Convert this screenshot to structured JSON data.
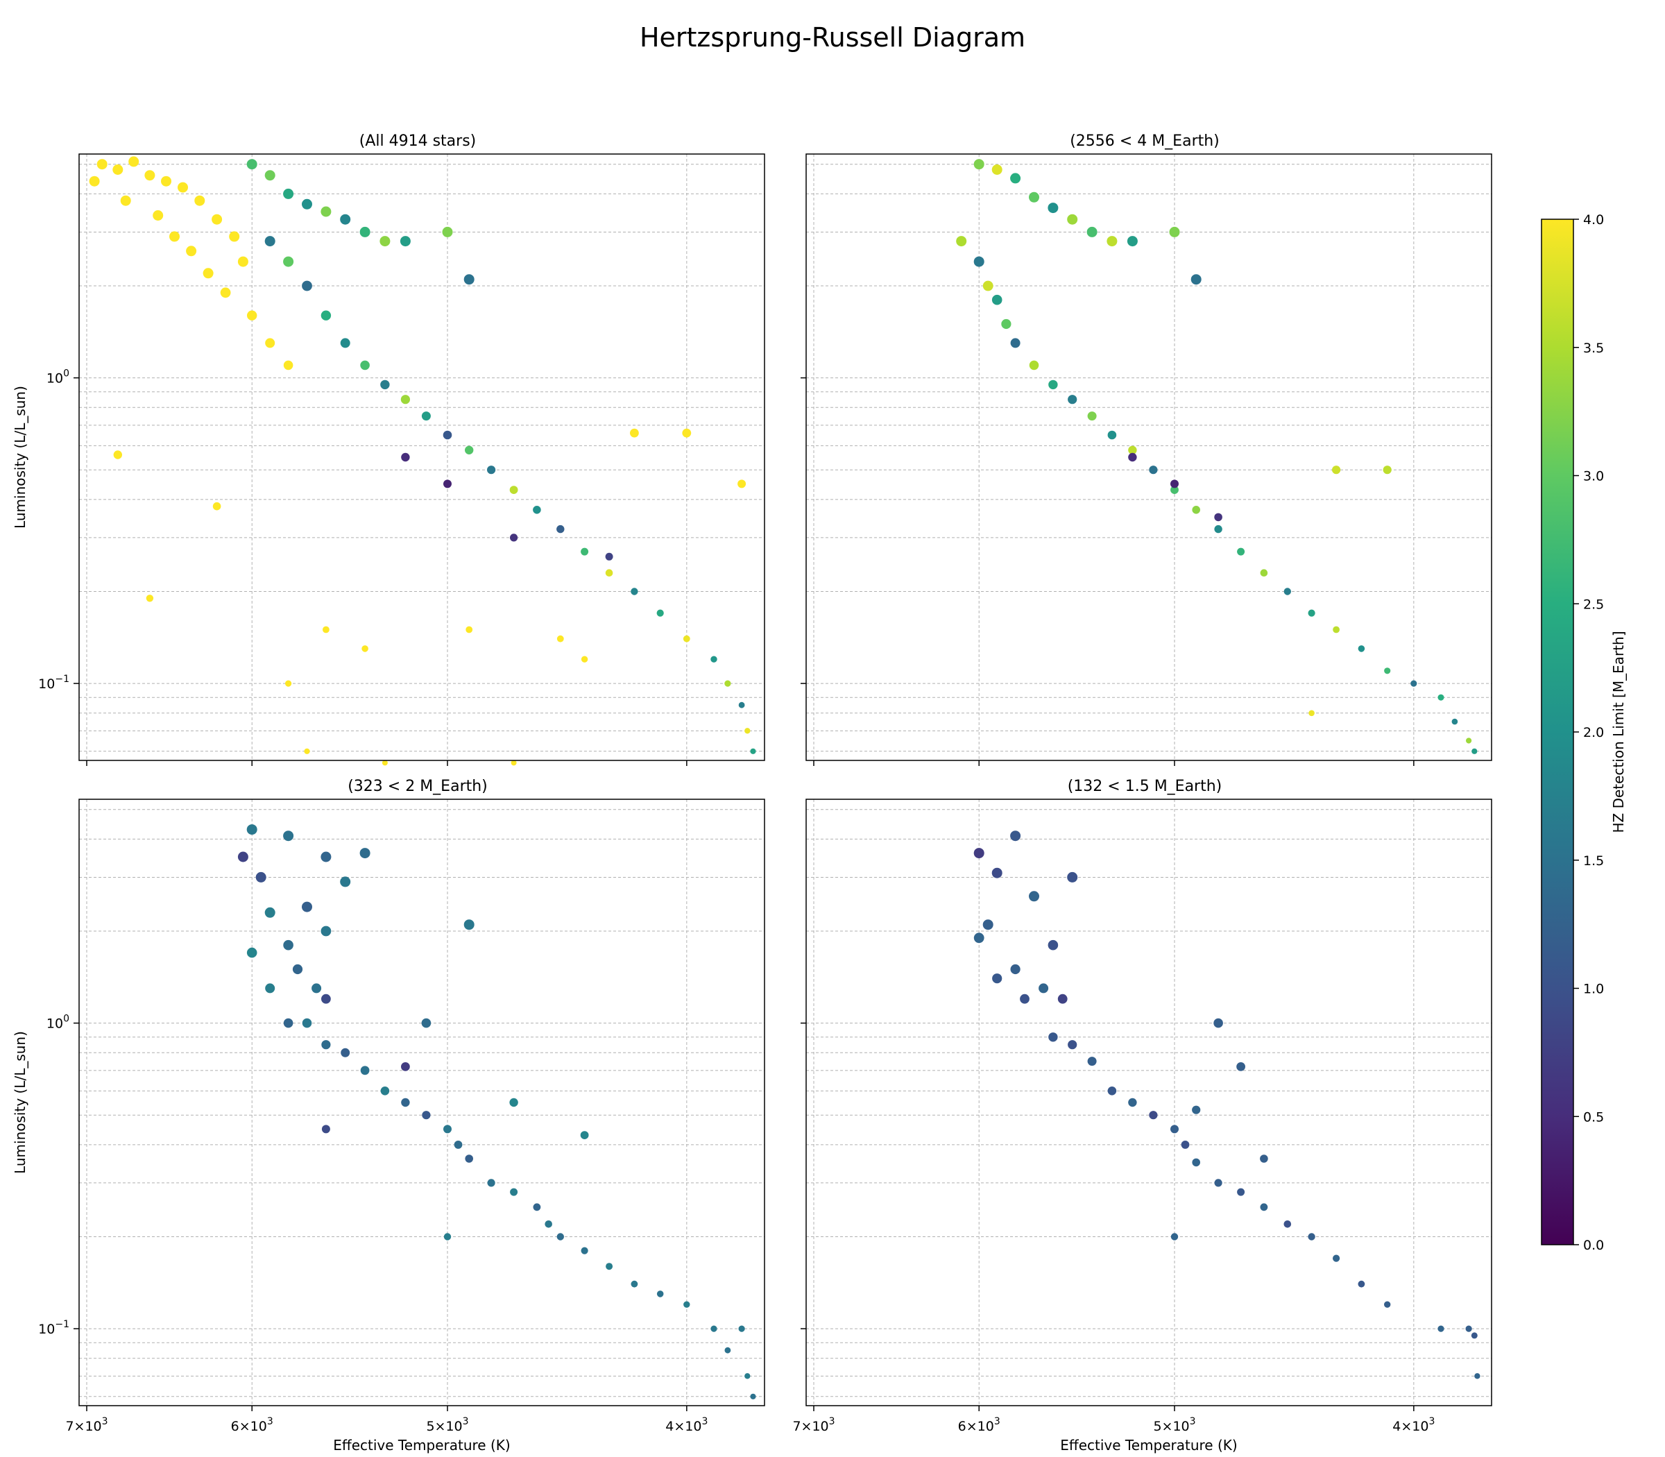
{
  "page": {
    "title": "Hertzsprung-Russell Diagram"
  },
  "colorbar": {
    "label": "HZ Detection Limit [M_Earth]",
    "colormap": "viridis",
    "range": [
      0.0,
      4.0
    ],
    "ticks": [
      "0.0",
      "0.5",
      "1.0",
      "1.5",
      "2.0",
      "2.5",
      "3.0",
      "3.5",
      "4.0"
    ]
  },
  "axes": {
    "xlabel": "Effective Temperature (K)",
    "ylabel": "Luminosity (L/L_sun)",
    "xscale": "log",
    "yscale": "log",
    "x_inverted": true,
    "xlim": [
      7050,
      3720
    ],
    "ylim": [
      0.056,
      5.4
    ],
    "x_ticks": [
      {
        "value": 7000,
        "base": "7×10",
        "exp": "3"
      },
      {
        "value": 6000,
        "base": "6×10",
        "exp": "3"
      },
      {
        "value": 5000,
        "base": "5×10",
        "exp": "3"
      },
      {
        "value": 4000,
        "base": "4×10",
        "exp": "3"
      }
    ],
    "y_ticks": [
      {
        "value": 1,
        "base": "10",
        "exp": "0"
      },
      {
        "value": 0.1,
        "base": "10",
        "exp": "−1"
      }
    ],
    "grid": true
  },
  "chart_data": [
    {
      "type": "scatter",
      "title": "(All 4914 stars)",
      "count": 4914,
      "max_value": 4.0,
      "points": [
        [
          6900,
          5.0,
          4.0
        ],
        [
          6800,
          4.8,
          4.0
        ],
        [
          6700,
          5.1,
          4.0
        ],
        [
          6600,
          4.6,
          4.0
        ],
        [
          6500,
          4.4,
          4.0
        ],
        [
          6400,
          4.2,
          4.0
        ],
        [
          6300,
          3.8,
          4.0
        ],
        [
          6200,
          3.3,
          4.0
        ],
        [
          6100,
          2.9,
          4.0
        ],
        [
          6050,
          2.4,
          4.0
        ],
        [
          6950,
          4.4,
          4.0
        ],
        [
          6750,
          3.8,
          4.0
        ],
        [
          6550,
          3.4,
          4.0
        ],
        [
          6450,
          2.9,
          4.0
        ],
        [
          6350,
          2.6,
          4.0
        ],
        [
          6250,
          2.2,
          4.0
        ],
        [
          6150,
          1.9,
          4.0
        ],
        [
          6000,
          1.6,
          4.0
        ],
        [
          5900,
          1.3,
          4.0
        ],
        [
          5800,
          1.1,
          4.0
        ],
        [
          6000,
          5.0,
          2.8
        ],
        [
          5900,
          4.6,
          3.1
        ],
        [
          5800,
          4.0,
          2.4
        ],
        [
          5700,
          3.7,
          2.0
        ],
        [
          5600,
          3.5,
          3.2
        ],
        [
          5500,
          3.3,
          1.8
        ],
        [
          5400,
          3.0,
          2.6
        ],
        [
          5300,
          2.8,
          3.3
        ],
        [
          5200,
          2.8,
          2.2
        ],
        [
          5000,
          3.0,
          3.2
        ],
        [
          5900,
          2.8,
          1.6
        ],
        [
          5800,
          2.4,
          3.0
        ],
        [
          5700,
          2.0,
          1.4
        ],
        [
          5600,
          1.6,
          2.5
        ],
        [
          5500,
          1.3,
          1.9
        ],
        [
          5400,
          1.1,
          2.8
        ],
        [
          5300,
          0.95,
          1.7
        ],
        [
          5200,
          0.85,
          3.4
        ],
        [
          5100,
          0.75,
          2.2
        ],
        [
          5000,
          0.65,
          1.1
        ],
        [
          4900,
          0.58,
          2.9
        ],
        [
          4800,
          0.5,
          1.6
        ],
        [
          4700,
          0.43,
          3.6
        ],
        [
          4600,
          0.37,
          2.0
        ],
        [
          4500,
          0.32,
          1.2
        ],
        [
          4400,
          0.27,
          2.7
        ],
        [
          4300,
          0.23,
          3.8
        ],
        [
          4200,
          0.2,
          1.8
        ],
        [
          4100,
          0.17,
          2.4
        ],
        [
          4000,
          0.14,
          3.9
        ],
        [
          3900,
          0.12,
          2.1
        ],
        [
          3850,
          0.1,
          3.5
        ],
        [
          3800,
          0.085,
          1.7
        ],
        [
          3780,
          0.07,
          3.9
        ],
        [
          3760,
          0.06,
          2.3
        ],
        [
          4900,
          2.1,
          1.5
        ],
        [
          5200,
          0.55,
          0.5
        ],
        [
          5000,
          0.45,
          0.4
        ],
        [
          4700,
          0.3,
          0.6
        ],
        [
          4300,
          0.26,
          0.8
        ],
        [
          6800,
          0.56,
          4.0
        ],
        [
          6600,
          0.19,
          4.0
        ],
        [
          6200,
          0.38,
          4.0
        ],
        [
          5600,
          0.15,
          4.0
        ],
        [
          5400,
          0.13,
          4.0
        ],
        [
          4900,
          0.15,
          4.0
        ],
        [
          4500,
          0.14,
          4.0
        ],
        [
          4200,
          0.66,
          4.0
        ],
        [
          4000,
          0.66,
          4.0
        ],
        [
          3800,
          0.45,
          4.0
        ],
        [
          5700,
          0.06,
          4.0
        ],
        [
          5300,
          0.055,
          4.0
        ],
        [
          4700,
          0.055,
          4.0
        ],
        [
          5800,
          0.1,
          4.0
        ],
        [
          4400,
          0.12,
          4.0
        ]
      ]
    },
    {
      "type": "scatter",
      "title": "(2556 < 4 M_Earth)",
      "count": 2556,
      "max_value": 4.0,
      "points": [
        [
          6000,
          5.0,
          3.2
        ],
        [
          5900,
          4.8,
          3.8
        ],
        [
          5800,
          4.5,
          2.5
        ],
        [
          5700,
          3.9,
          3.0
        ],
        [
          5600,
          3.6,
          2.0
        ],
        [
          5500,
          3.3,
          3.4
        ],
        [
          5400,
          3.0,
          2.8
        ],
        [
          5300,
          2.8,
          3.6
        ],
        [
          5200,
          2.8,
          2.2
        ],
        [
          5000,
          3.0,
          3.2
        ],
        [
          6100,
          2.8,
          3.5
        ],
        [
          6000,
          2.4,
          1.6
        ],
        [
          5950,
          2.0,
          3.7
        ],
        [
          5900,
          1.8,
          2.2
        ],
        [
          5850,
          1.5,
          3.0
        ],
        [
          5800,
          1.3,
          1.4
        ],
        [
          5700,
          1.1,
          3.5
        ],
        [
          5600,
          0.95,
          2.4
        ],
        [
          5500,
          0.85,
          1.7
        ],
        [
          5400,
          0.75,
          3.2
        ],
        [
          5300,
          0.65,
          2.0
        ],
        [
          5200,
          0.58,
          3.6
        ],
        [
          5100,
          0.5,
          1.5
        ],
        [
          5000,
          0.43,
          2.8
        ],
        [
          4900,
          0.37,
          3.3
        ],
        [
          4800,
          0.32,
          1.9
        ],
        [
          4700,
          0.27,
          2.6
        ],
        [
          4600,
          0.23,
          3.4
        ],
        [
          4500,
          0.2,
          1.7
        ],
        [
          4400,
          0.17,
          2.3
        ],
        [
          4300,
          0.15,
          3.6
        ],
        [
          4200,
          0.13,
          2.0
        ],
        [
          4100,
          0.11,
          2.7
        ],
        [
          4000,
          0.1,
          1.5
        ],
        [
          3900,
          0.09,
          2.5
        ],
        [
          3850,
          0.075,
          1.8
        ],
        [
          3800,
          0.065,
          3.4
        ],
        [
          3780,
          0.06,
          2.2
        ],
        [
          4900,
          2.1,
          1.5
        ],
        [
          5200,
          0.55,
          0.5
        ],
        [
          5000,
          0.45,
          0.4
        ],
        [
          4800,
          0.35,
          0.6
        ],
        [
          4300,
          0.5,
          3.7
        ],
        [
          4100,
          0.5,
          3.6
        ],
        [
          4400,
          0.08,
          3.9
        ]
      ]
    },
    {
      "type": "scatter",
      "title": "(323 < 2 M_Earth)",
      "count": 323,
      "max_value": 2.0,
      "points": [
        [
          6000,
          4.3,
          1.6
        ],
        [
          5800,
          4.1,
          1.5
        ],
        [
          5600,
          3.5,
          1.3
        ],
        [
          5400,
          3.6,
          1.4
        ],
        [
          5500,
          2.9,
          1.6
        ],
        [
          6050,
          3.5,
          0.8
        ],
        [
          5950,
          3.0,
          1.0
        ],
        [
          5900,
          2.3,
          1.7
        ],
        [
          5700,
          2.4,
          1.2
        ],
        [
          5600,
          2.0,
          1.6
        ],
        [
          5800,
          1.8,
          1.4
        ],
        [
          5750,
          1.5,
          1.3
        ],
        [
          5650,
          1.3,
          1.5
        ],
        [
          5600,
          1.2,
          0.9
        ],
        [
          5900,
          1.3,
          1.7
        ],
        [
          6000,
          1.7,
          1.8
        ],
        [
          5800,
          1.0,
          1.3
        ],
        [
          5700,
          1.0,
          1.6
        ],
        [
          5600,
          0.85,
          1.4
        ],
        [
          5500,
          0.8,
          1.2
        ],
        [
          5400,
          0.7,
          1.5
        ],
        [
          5300,
          0.6,
          1.7
        ],
        [
          5200,
          0.55,
          1.3
        ],
        [
          5100,
          0.5,
          1.1
        ],
        [
          5000,
          0.45,
          1.6
        ],
        [
          4950,
          0.4,
          1.4
        ],
        [
          4900,
          0.36,
          1.2
        ],
        [
          4800,
          0.3,
          1.5
        ],
        [
          4700,
          0.28,
          1.7
        ],
        [
          4600,
          0.25,
          1.3
        ],
        [
          4550,
          0.22,
          1.6
        ],
        [
          4500,
          0.2,
          1.4
        ],
        [
          4400,
          0.18,
          1.5
        ],
        [
          4300,
          0.16,
          1.7
        ],
        [
          4200,
          0.14,
          1.6
        ],
        [
          4100,
          0.13,
          1.5
        ],
        [
          4000,
          0.12,
          1.7
        ],
        [
          3900,
          0.1,
          1.6
        ],
        [
          3850,
          0.085,
          1.5
        ],
        [
          3800,
          0.1,
          1.6
        ],
        [
          3780,
          0.07,
          1.7
        ],
        [
          3760,
          0.06,
          1.5
        ],
        [
          4900,
          2.1,
          1.6
        ],
        [
          5200,
          0.72,
          0.7
        ],
        [
          4700,
          0.55,
          1.8
        ],
        [
          5600,
          0.45,
          0.9
        ],
        [
          5100,
          1.0,
          1.4
        ],
        [
          5000,
          0.2,
          1.7
        ],
        [
          4400,
          0.43,
          1.8
        ]
      ]
    },
    {
      "type": "scatter",
      "title": "(132 < 1.5 M_Earth)",
      "count": 132,
      "max_value": 1.5,
      "points": [
        [
          6000,
          3.6,
          0.7
        ],
        [
          5800,
          4.1,
          1.1
        ],
        [
          5500,
          3.0,
          1.0
        ],
        [
          5900,
          3.1,
          0.9
        ],
        [
          5950,
          2.1,
          1.2
        ],
        [
          5700,
          2.6,
          1.3
        ],
        [
          5600,
          1.8,
          1.0
        ],
        [
          6000,
          1.9,
          1.3
        ],
        [
          5800,
          1.5,
          1.2
        ],
        [
          5900,
          1.4,
          1.1
        ],
        [
          5750,
          1.2,
          1.0
        ],
        [
          5650,
          1.3,
          1.3
        ],
        [
          5550,
          1.2,
          0.8
        ],
        [
          5600,
          0.9,
          1.1
        ],
        [
          5500,
          0.85,
          1.0
        ],
        [
          5400,
          0.75,
          1.2
        ],
        [
          5300,
          0.6,
          1.1
        ],
        [
          5200,
          0.55,
          1.3
        ],
        [
          5100,
          0.5,
          0.9
        ],
        [
          5000,
          0.45,
          1.2
        ],
        [
          4950,
          0.4,
          1.0
        ],
        [
          4900,
          0.35,
          1.3
        ],
        [
          4800,
          0.3,
          1.2
        ],
        [
          4700,
          0.28,
          1.1
        ],
        [
          4600,
          0.25,
          1.3
        ],
        [
          4500,
          0.22,
          1.0
        ],
        [
          4400,
          0.2,
          1.2
        ],
        [
          4300,
          0.17,
          1.3
        ],
        [
          4200,
          0.14,
          1.1
        ],
        [
          4100,
          0.12,
          1.2
        ],
        [
          3900,
          0.1,
          1.3
        ],
        [
          3800,
          0.1,
          1.2
        ],
        [
          3780,
          0.095,
          1.1
        ],
        [
          3770,
          0.07,
          1.3
        ],
        [
          4800,
          1.0,
          1.2
        ],
        [
          4700,
          0.72,
          1.2
        ],
        [
          4900,
          0.52,
          1.3
        ],
        [
          5000,
          0.2,
          1.3
        ],
        [
          4600,
          0.36,
          1.2
        ]
      ]
    }
  ]
}
